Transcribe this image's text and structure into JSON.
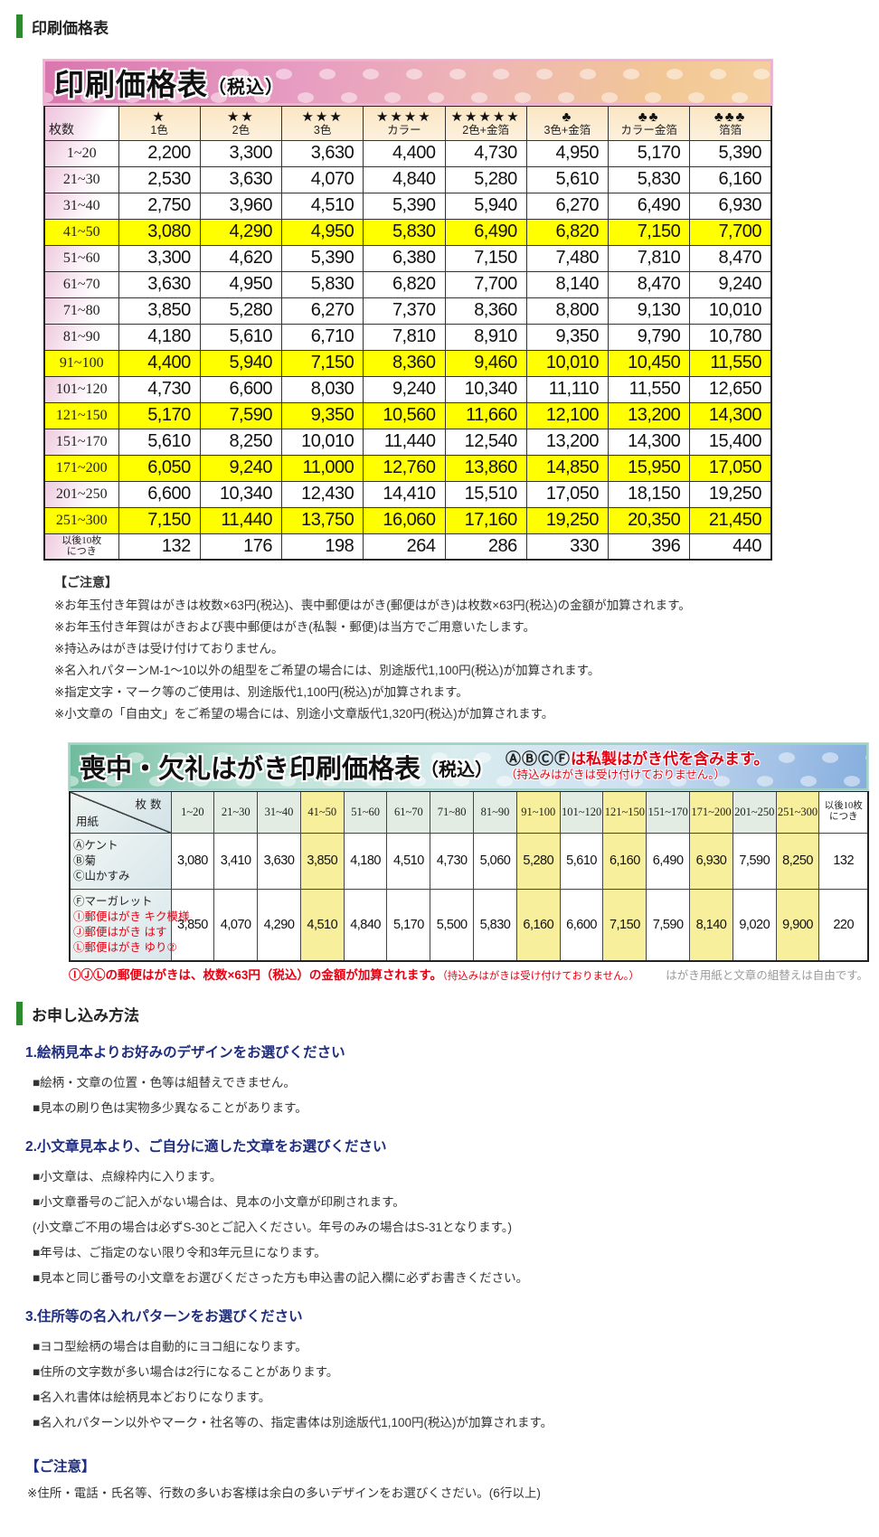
{
  "page_title": "印刷価格表",
  "table1": {
    "banner_title": "印刷価格表",
    "banner_tax": "（税込）",
    "corner_label": "枚数",
    "columns": [
      {
        "symbol": "★",
        "label": "1色"
      },
      {
        "symbol": "★★",
        "label": "2色"
      },
      {
        "symbol": "★★★",
        "label": "3色"
      },
      {
        "symbol": "★★★★",
        "label": "カラー"
      },
      {
        "symbol": "★★★★★",
        "label": "2色+金箔"
      },
      {
        "symbol": "♣",
        "label": "3色+金箔"
      },
      {
        "symbol": "♣♣",
        "label": "カラー金箔"
      },
      {
        "symbol": "♣♣♣",
        "label": "箔箔"
      }
    ],
    "rows": [
      {
        "label": "1~20",
        "highlight": false,
        "values": [
          "2,200",
          "3,300",
          "3,630",
          "4,400",
          "4,730",
          "4,950",
          "5,170",
          "5,390"
        ]
      },
      {
        "label": "21~30",
        "highlight": false,
        "values": [
          "2,530",
          "3,630",
          "4,070",
          "4,840",
          "5,280",
          "5,610",
          "5,830",
          "6,160"
        ]
      },
      {
        "label": "31~40",
        "highlight": false,
        "values": [
          "2,750",
          "3,960",
          "4,510",
          "5,390",
          "5,940",
          "6,270",
          "6,490",
          "6,930"
        ]
      },
      {
        "label": "41~50",
        "highlight": true,
        "values": [
          "3,080",
          "4,290",
          "4,950",
          "5,830",
          "6,490",
          "6,820",
          "7,150",
          "7,700"
        ]
      },
      {
        "label": "51~60",
        "highlight": false,
        "values": [
          "3,300",
          "4,620",
          "5,390",
          "6,380",
          "7,150",
          "7,480",
          "7,810",
          "8,470"
        ]
      },
      {
        "label": "61~70",
        "highlight": false,
        "values": [
          "3,630",
          "4,950",
          "5,830",
          "6,820",
          "7,700",
          "8,140",
          "8,470",
          "9,240"
        ]
      },
      {
        "label": "71~80",
        "highlight": false,
        "values": [
          "3,850",
          "5,280",
          "6,270",
          "7,370",
          "8,360",
          "8,800",
          "9,130",
          "10,010"
        ]
      },
      {
        "label": "81~90",
        "highlight": false,
        "values": [
          "4,180",
          "5,610",
          "6,710",
          "7,810",
          "8,910",
          "9,350",
          "9,790",
          "10,780"
        ]
      },
      {
        "label": "91~100",
        "highlight": true,
        "values": [
          "4,400",
          "5,940",
          "7,150",
          "8,360",
          "9,460",
          "10,010",
          "10,450",
          "11,550"
        ]
      },
      {
        "label": "101~120",
        "highlight": false,
        "values": [
          "4,730",
          "6,600",
          "8,030",
          "9,240",
          "10,340",
          "11,110",
          "11,550",
          "12,650"
        ]
      },
      {
        "label": "121~150",
        "highlight": true,
        "values": [
          "5,170",
          "7,590",
          "9,350",
          "10,560",
          "11,660",
          "12,100",
          "13,200",
          "14,300"
        ]
      },
      {
        "label": "151~170",
        "highlight": false,
        "values": [
          "5,610",
          "8,250",
          "10,010",
          "11,440",
          "12,540",
          "13,200",
          "14,300",
          "15,400"
        ]
      },
      {
        "label": "171~200",
        "highlight": true,
        "values": [
          "6,050",
          "9,240",
          "11,000",
          "12,760",
          "13,860",
          "14,850",
          "15,950",
          "17,050"
        ]
      },
      {
        "label": "201~250",
        "highlight": false,
        "values": [
          "6,600",
          "10,340",
          "12,430",
          "14,410",
          "15,510",
          "17,050",
          "18,150",
          "19,250"
        ]
      },
      {
        "label": "251~300",
        "highlight": true,
        "values": [
          "7,150",
          "11,440",
          "13,750",
          "16,060",
          "17,160",
          "19,250",
          "20,350",
          "21,450"
        ]
      },
      {
        "label": "以後10枚\nにつき",
        "small": true,
        "highlight": false,
        "values": [
          "132",
          "176",
          "198",
          "264",
          "286",
          "330",
          "396",
          "440"
        ]
      }
    ]
  },
  "notes1": {
    "heading": "【ご注意】",
    "items": [
      "※お年玉付き年賀はがきは枚数×63円(税込)、喪中郵便はがき(郵便はがき)は枚数×63円(税込)の金額が加算されます。",
      "※お年玉付き年賀はがきおよび喪中郵便はがき(私製・郵便)は当方でご用意いたします。",
      "※持込みはがきは受け付けておりません。",
      "※名入れパターンM-1～10以外の組型をご希望の場合には、別途版代1,100円(税込)が加算されます。",
      "※指定文字・マーク等のご使用は、別途版代1,100円(税込)が加算されます。",
      "※小文章の「自由文」をご希望の場合には、別途小文章版代1,320円(税込)が加算されます。"
    ]
  },
  "table2": {
    "banner_title": "喪中・欠礼はがき印刷価格表",
    "banner_tax": "（税込）",
    "banner_note_circles": "ⒶⒷⒸⒻ",
    "banner_note_main": "は私製はがき代を含みます。",
    "banner_note_sub": "（持込みはがきは受け付けておりません。）",
    "corner_top": "枚数",
    "corner_bottom": "用紙",
    "columns": [
      {
        "label": "1~20",
        "highlight": false
      },
      {
        "label": "21~30",
        "highlight": false
      },
      {
        "label": "31~40",
        "highlight": false
      },
      {
        "label": "41~50",
        "highlight": true
      },
      {
        "label": "51~60",
        "highlight": false
      },
      {
        "label": "61~70",
        "highlight": false
      },
      {
        "label": "71~80",
        "highlight": false
      },
      {
        "label": "81~90",
        "highlight": false
      },
      {
        "label": "91~100",
        "highlight": true
      },
      {
        "label": "101~120",
        "highlight": false
      },
      {
        "label": "121~150",
        "highlight": true
      },
      {
        "label": "151~170",
        "highlight": false
      },
      {
        "label": "171~200",
        "highlight": true
      },
      {
        "label": "201~250",
        "highlight": false
      },
      {
        "label": "251~300",
        "highlight": true
      },
      {
        "label": "以後10枚\nにつき",
        "highlight": false,
        "last": true
      }
    ],
    "rows": [
      {
        "label_lines": [
          {
            "text": "Ⓐケント",
            "red": false
          },
          {
            "text": "Ⓑ菊",
            "red": false
          },
          {
            "text": "Ⓒ山かすみ",
            "red": false
          }
        ],
        "values": [
          "3,080",
          "3,410",
          "3,630",
          "3,850",
          "4,180",
          "4,510",
          "4,730",
          "5,060",
          "5,280",
          "5,610",
          "6,160",
          "6,490",
          "6,930",
          "7,590",
          "8,250",
          "132"
        ]
      },
      {
        "label_lines": [
          {
            "text": "Ⓕマーガレット",
            "red": false
          },
          {
            "text": "Ⓘ郵便はがき キク模様",
            "red": true
          },
          {
            "text": "Ⓙ郵便はがき はす",
            "red": true
          },
          {
            "text": "Ⓛ郵便はがき ゆり②",
            "red": true
          }
        ],
        "values": [
          "3,850",
          "4,070",
          "4,290",
          "4,510",
          "4,840",
          "5,170",
          "5,500",
          "5,830",
          "6,160",
          "6,600",
          "7,150",
          "7,590",
          "8,140",
          "9,020",
          "9,900",
          "220"
        ]
      }
    ],
    "footer_note_red_main": "ⒾⒿⓁの郵便はがきは、枚数×63円（税込）の金額が加算されます。",
    "footer_note_red_sub": "（持込みはがきは受け付けておりません。）",
    "footer_note_gray": "はがき用紙と文章の組替えは自由です。"
  },
  "application": {
    "title": "お申し込み方法",
    "sections": [
      {
        "heading": "1.絵柄見本よりお好みのデザインをお選びください",
        "items": [
          "■絵柄・文章の位置・色等は組替えできません。",
          "■見本の刷り色は実物多少異なることがあります。"
        ]
      },
      {
        "heading": "2.小文章見本より、ご自分に適した文章をお選びください",
        "items": [
          "■小文章は、点線枠内に入ります。",
          "■小文章番号のご記入がない場合は、見本の小文章が印刷されます。",
          "(小文章ご不用の場合は必ずS-30とご記入ください。年号のみの場合はS-31となります。)",
          "■年号は、ご指定のない限り令和3年元旦になります。",
          "■見本と同じ番号の小文章をお選びくださった方も申込書の記入欄に必ずお書きください。"
        ]
      },
      {
        "heading": "3.住所等の名入れパターンをお選びください",
        "items": [
          "■ヨコ型絵柄の場合は自動的にヨコ組になります。",
          "■住所の文字数が多い場合は2行になることがあります。",
          "■名入れ書体は絵柄見本どおりになります。",
          "■名入れパターン以外やマーク・社名等の、指定書体は別途版代1,100円(税込)が加算されます。"
        ]
      }
    ],
    "notice_heading": "【ご注意】",
    "notice_text": "※住所・電話・氏名等、行数の多いお客様は余白の多いデザインをお選びくさだい。(6行以上)"
  }
}
